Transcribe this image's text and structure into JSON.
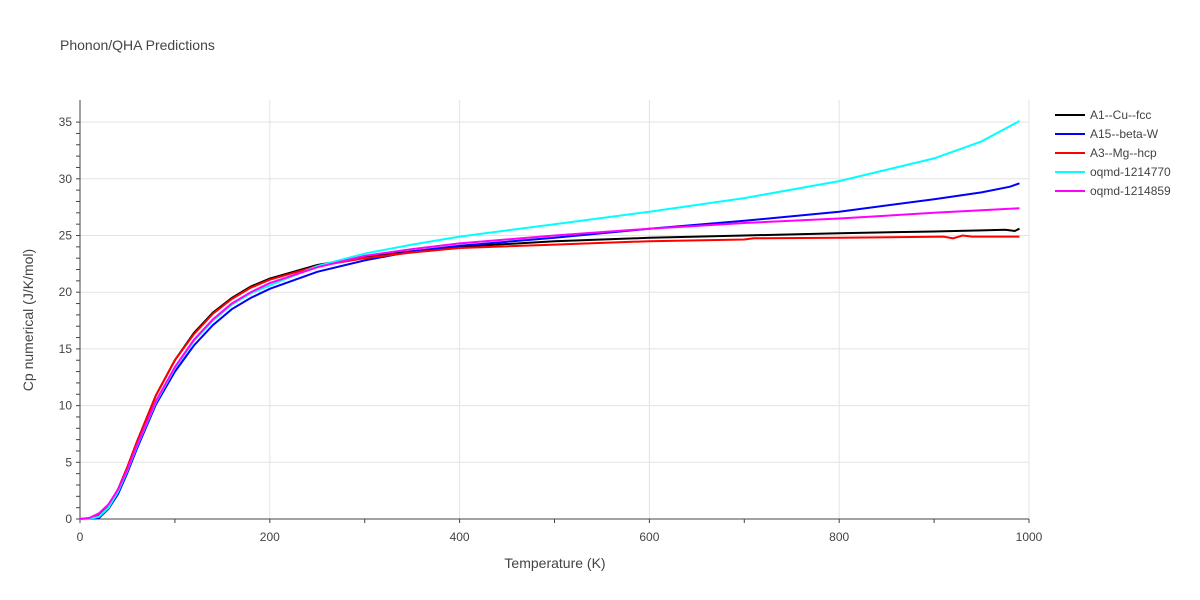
{
  "chart_data": {
    "type": "line",
    "title": "Phonon/QHA Predictions",
    "xlabel": "Temperature (K)",
    "ylabel": "Cp numerical (J/K/mol)",
    "xlim": [
      0,
      1000
    ],
    "ylim": [
      0,
      37
    ],
    "xticks": [
      0,
      200,
      400,
      600,
      800,
      1000
    ],
    "yticks": [
      0,
      5,
      10,
      15,
      20,
      25,
      30,
      35
    ],
    "grid": true,
    "legend": "top-right",
    "series": [
      {
        "name": "A1--Cu--fcc",
        "color": "#000000",
        "x": [
          0,
          10,
          20,
          30,
          40,
          50,
          60,
          80,
          100,
          120,
          140,
          160,
          180,
          200,
          250,
          300,
          350,
          400,
          500,
          600,
          700,
          800,
          900,
          950,
          975,
          985,
          990
        ],
        "y": [
          0,
          0.05,
          0.4,
          1.2,
          2.6,
          4.6,
          6.8,
          10.9,
          14.0,
          16.4,
          18.2,
          19.5,
          20.5,
          21.2,
          22.4,
          23.1,
          23.6,
          24.0,
          24.5,
          24.8,
          25.0,
          25.2,
          25.35,
          25.45,
          25.5,
          25.4,
          25.6
        ]
      },
      {
        "name": "A15--beta-W",
        "color": "#0000ff",
        "x": [
          0,
          10,
          20,
          30,
          40,
          50,
          60,
          80,
          100,
          120,
          140,
          160,
          180,
          200,
          250,
          300,
          350,
          400,
          500,
          600,
          700,
          800,
          900,
          950,
          980,
          990
        ],
        "y": [
          0,
          0,
          0.1,
          0.9,
          2.2,
          4.1,
          6.2,
          10.1,
          13.0,
          15.3,
          17.1,
          18.5,
          19.5,
          20.3,
          21.8,
          22.8,
          23.6,
          24.1,
          24.8,
          25.6,
          26.3,
          27.1,
          28.2,
          28.8,
          29.3,
          29.6
        ]
      },
      {
        "name": "A3--Mg--hcp",
        "color": "#ff0000",
        "x": [
          0,
          10,
          20,
          30,
          40,
          50,
          60,
          80,
          100,
          120,
          140,
          160,
          180,
          200,
          250,
          300,
          350,
          400,
          500,
          600,
          700,
          710,
          800,
          910,
          920,
          930,
          940,
          990
        ],
        "y": [
          0,
          0.05,
          0.4,
          1.2,
          2.6,
          4.6,
          6.8,
          10.9,
          14.0,
          16.3,
          18.1,
          19.4,
          20.4,
          21.1,
          22.3,
          23.0,
          23.5,
          23.9,
          24.2,
          24.5,
          24.65,
          24.75,
          24.8,
          24.9,
          24.75,
          25.0,
          24.9,
          24.9
        ]
      },
      {
        "name": "oqmd-1214770",
        "color": "#00ffff",
        "x": [
          0,
          10,
          20,
          30,
          40,
          50,
          60,
          80,
          100,
          120,
          140,
          160,
          180,
          200,
          250,
          300,
          350,
          400,
          500,
          600,
          700,
          800,
          900,
          950,
          990
        ],
        "y": [
          0,
          0,
          0.2,
          1.0,
          2.4,
          4.3,
          6.4,
          10.3,
          13.3,
          15.7,
          17.5,
          18.9,
          19.9,
          20.6,
          22.3,
          23.4,
          24.2,
          24.9,
          26.0,
          27.1,
          28.3,
          29.8,
          31.8,
          33.3,
          35.1
        ]
      },
      {
        "name": "oqmd-1214859",
        "color": "#ff00ff",
        "x": [
          0,
          10,
          20,
          30,
          40,
          50,
          60,
          80,
          100,
          120,
          140,
          160,
          180,
          200,
          250,
          300,
          350,
          400,
          500,
          600,
          700,
          800,
          900,
          990
        ],
        "y": [
          0,
          0.1,
          0.5,
          1.3,
          2.6,
          4.4,
          6.5,
          10.4,
          13.4,
          15.8,
          17.6,
          19.0,
          20.0,
          20.8,
          22.2,
          23.2,
          23.8,
          24.3,
          25.0,
          25.6,
          26.1,
          26.5,
          27.0,
          27.4
        ]
      }
    ]
  }
}
